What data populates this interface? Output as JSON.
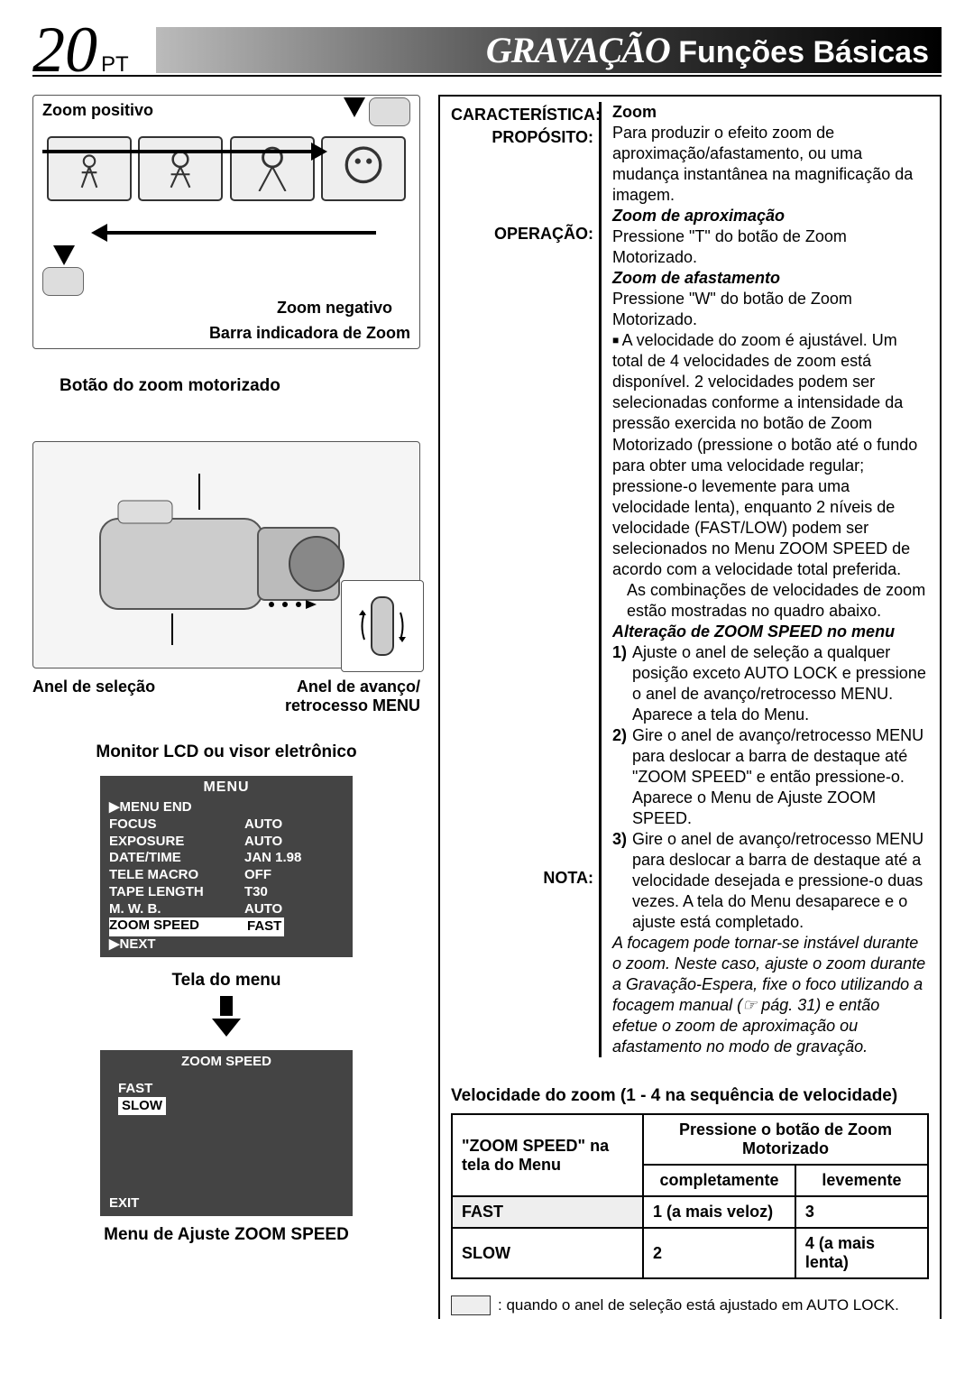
{
  "page_number": "20",
  "page_suffix": "PT",
  "header_main": "GRAVAÇÃO",
  "header_sub": "Funções Básicas",
  "zoom_diagram": {
    "zoom_in_label": "Zoom positivo",
    "zoom_out_label": "Zoom negativo",
    "bar_label": "Barra indicadora de Zoom"
  },
  "camera": {
    "top_label": "Botão do zoom motorizado",
    "ring_label": "Anel de seleção",
    "menu_ring_label": "Anel de avanço/ retrocesso MENU"
  },
  "lcd_title": "Monitor LCD ou visor eletrônico",
  "menu_screen": {
    "title": "MENU",
    "rows": [
      {
        "k": "▶MENU END",
        "v": ""
      },
      {
        "k": "FOCUS",
        "v": "AUTO"
      },
      {
        "k": "EXPOSURE",
        "v": "AUTO"
      },
      {
        "k": "DATE/TIME",
        "v": "JAN  1.98"
      },
      {
        "k": "TELE MACRO",
        "v": "OFF"
      },
      {
        "k": "TAPE LENGTH",
        "v": "T30"
      },
      {
        "k": "M. W. B.",
        "v": "AUTO"
      },
      {
        "k": "ZOOM SPEED",
        "v": "FAST",
        "highlight": true,
        "sel": true
      },
      {
        "k": "▶NEXT",
        "v": ""
      }
    ]
  },
  "menu_caption": "Tela do menu",
  "zoom_speed_menu": {
    "title": "ZOOM SPEED",
    "fast": "FAST",
    "slow": "SLOW",
    "exit": "EXIT"
  },
  "zoom_speed_caption": "Menu de Ajuste ZOOM SPEED",
  "spec": {
    "l_caracteristica": "CARACTERÍSTICA:",
    "l_proposito": "PROPÓSITO:",
    "l_operacao": "OPERAÇÃO:",
    "l_nota": "NOTA:",
    "feature": "Zoom",
    "purpose": "Para produzir o efeito zoom de aproximação/afastamento, ou uma mudança instantânea na magnificação da imagem.",
    "op_zoomin_h": "Zoom de aproximação",
    "op_zoomin": "Pressione \"T\" do botão de Zoom Motorizado.",
    "op_zoomout_h": "Zoom de afastamento",
    "op_zoomout": "Pressione \"W\" do botão de Zoom Motorizado.",
    "op_bullet": "A velocidade do zoom é ajustável. Um total de 4 velocidades de zoom está disponível. 2 velocidades podem ser selecionadas conforme a intensidade da pressão exercida no botão de Zoom Motorizado (pressione o botão até o fundo para obter uma velocidade regular; pressione-o levemente para uma velocidade lenta), enquanto 2 níveis de velocidade (FAST/LOW) podem ser selecionados no Menu ZOOM SPEED de acordo com a velocidade total preferida.",
    "op_bullet2": "As combinações de velocidades de zoom estão mostradas no quadro abaixo.",
    "op_change_h": "Alteração de ZOOM SPEED no menu",
    "op_step1": "Ajuste o anel de seleção a qualquer posição exceto AUTO LOCK e pressione o anel de avanço/retrocesso MENU. Aparece a tela do Menu.",
    "op_step2": "Gire o anel de avanço/retrocesso MENU para deslocar a barra de destaque até \"ZOOM SPEED\" e então pressione-o. Aparece o Menu de Ajuste ZOOM SPEED.",
    "op_step3": "Gire o anel de avanço/retrocesso MENU para deslocar a barra de destaque até a velocidade desejada e pressione-o duas vezes. A tela do Menu desaparece e o ajuste está completado.",
    "note": "A focagem pode tornar-se instável durante o zoom. Neste caso, ajuste o zoom durante a Gravação-Espera, fixe o foco utilizando a focagem manual (☞ pág. 31) e então efetue o zoom de aproximação ou afastamento no modo de gravação."
  },
  "speed_table": {
    "heading": "Velocidade do zoom (1 - 4 na sequência de velocidade)",
    "col1": "\"ZOOM SPEED\" na tela do Menu",
    "col2": "Pressione o botão de Zoom Motorizado",
    "sub_full": "completamente",
    "sub_light": "levemente",
    "row_fast": "FAST",
    "row_fast_full": "1 (a mais veloz)",
    "row_fast_light": "3",
    "row_slow": "SLOW",
    "row_slow_full": "2",
    "row_slow_light": "4 (a mais lenta)"
  },
  "legend": ": quando o anel de seleção está ajustado em AUTO LOCK."
}
